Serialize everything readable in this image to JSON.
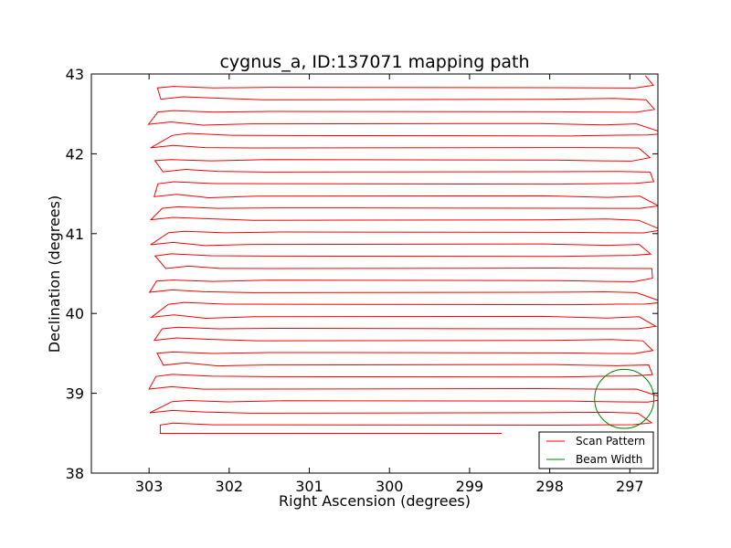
{
  "chart_data": {
    "type": "line",
    "title": "cygnus_a, ID:137071 mapping path",
    "xlabel": "Right Ascension (degrees)",
    "ylabel": "Declination (degrees)",
    "xlim": [
      303.72,
      296.65
    ],
    "ylim": [
      38.0,
      43.0
    ],
    "x_ticks": [
      303,
      302,
      301,
      300,
      299,
      298,
      297
    ],
    "y_ticks": [
      38,
      39,
      40,
      41,
      42,
      43
    ],
    "x_tick_labels": [
      "303",
      "302",
      "301",
      "300",
      "299",
      "298",
      "297"
    ],
    "y_tick_labels": [
      "38",
      "39",
      "40",
      "41",
      "42",
      "43"
    ],
    "grid": false,
    "legend_position": "lower-right",
    "series": [
      {
        "name": "Scan Pattern",
        "color": "#ff0000",
        "kind": "scan",
        "params": {
          "rows": 30,
          "dec_start": 38.5,
          "dec_step": 0.151,
          "ra_west": 302.85,
          "ra_east": 296.85,
          "first_ra": 302.86,
          "last_ra": 298.6
        }
      },
      {
        "name": "Beam Width",
        "color": "#008000",
        "kind": "circle",
        "center": [
          297.07,
          38.93
        ],
        "radius_deg": 0.37
      }
    ]
  }
}
